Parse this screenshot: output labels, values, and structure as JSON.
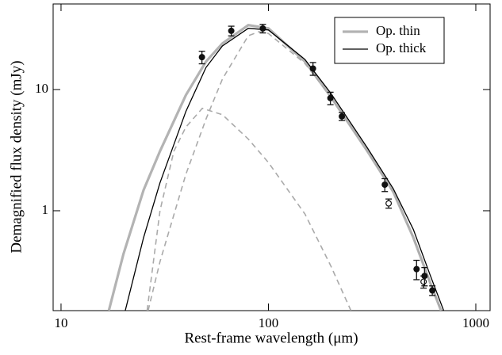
{
  "chart_data": {
    "type": "line",
    "x_label": "Rest-frame wavelength (μm)",
    "y_label": "Demagnified flux density (mJy)",
    "xlim": [
      9.16,
      1172
    ],
    "ylim": [
      0.15,
      50.8
    ],
    "xticks": [
      10,
      100,
      1000
    ],
    "yticks": [
      1,
      10
    ],
    "log_x": true,
    "log_y": true,
    "legend": "upper right",
    "series": [
      {
        "name": "Op. thin",
        "color": "#b3b3b3",
        "width": 3.2,
        "mode": "line",
        "x": [
          17,
          20,
          25,
          30,
          40,
          50,
          60,
          80,
          100,
          150,
          200,
          300,
          400,
          500,
          600,
          680
        ],
        "values": [
          0.15,
          0.44,
          1.48,
          3.1,
          9.0,
          17,
          24,
          34,
          32,
          17,
          8.7,
          3.1,
          1.43,
          0.6,
          0.26,
          0.15
        ]
      },
      {
        "name": "Op. thick",
        "color": "#000000",
        "width": 1.3,
        "mode": "line",
        "x": [
          20.4,
          25,
          30,
          40,
          50,
          60,
          80,
          100,
          150,
          200,
          300,
          400,
          500,
          600,
          700
        ],
        "values": [
          0.15,
          0.6,
          1.7,
          6.6,
          15.2,
          22.9,
          32,
          31,
          17.7,
          9.3,
          3.3,
          1.52,
          0.7,
          0.3,
          0.15
        ]
      },
      {
        "color": "#aaaaaa",
        "width": 1.6,
        "dash": true,
        "mode": "line",
        "x": [
          26.3,
          30,
          40,
          50,
          60,
          80,
          90,
          100,
          150,
          200,
          300,
          400,
          500,
          600,
          680
        ],
        "values": [
          0.15,
          0.38,
          2.0,
          5.7,
          12.2,
          27.8,
          30,
          29,
          16.4,
          8.7,
          3.1,
          1.43,
          0.6,
          0.26,
          0.15
        ]
      },
      {
        "color": "#aaaaaa",
        "width": 1.6,
        "dash": true,
        "mode": "line",
        "x": [
          26,
          30,
          35,
          40,
          48,
          60,
          80,
          100,
          150,
          200,
          250
        ],
        "values": [
          0.15,
          1.0,
          3.1,
          4.9,
          7.0,
          6.2,
          3.9,
          2.5,
          0.94,
          0.35,
          0.15
        ]
      },
      {
        "color": "#111111",
        "mode": "markers",
        "x": [
          47.8,
          66.2,
          94,
          164,
          199,
          226,
          364,
          380,
          518,
          560,
          566,
          617
        ],
        "values": [
          18.5,
          30.5,
          31.9,
          14.9,
          8.5,
          6.0,
          1.64,
          1.15,
          0.33,
          0.26,
          0.29,
          0.22
        ],
        "errors": [
          2.2,
          2.8,
          2.6,
          1.8,
          1.0,
          0.45,
          0.2,
          0.1,
          0.06,
          0.03,
          0.05,
          0.02
        ],
        "filled": [
          true,
          true,
          true,
          true,
          true,
          true,
          true,
          false,
          true,
          false,
          true,
          true
        ]
      }
    ]
  }
}
